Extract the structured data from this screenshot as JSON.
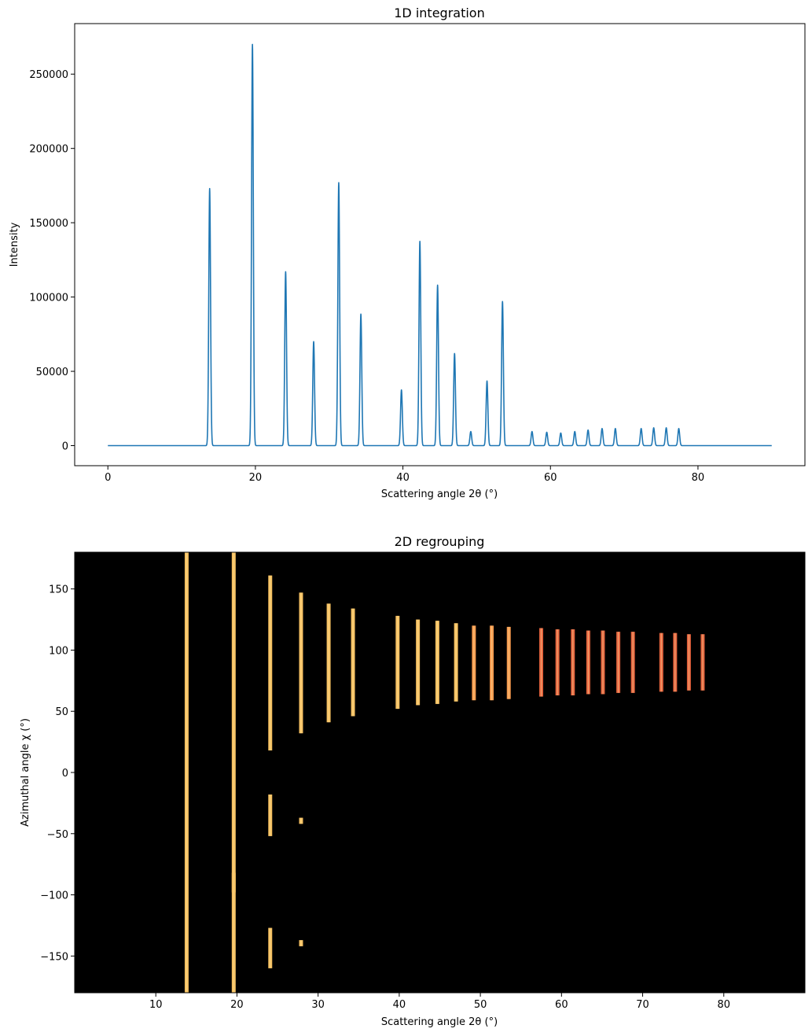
{
  "chart_data": [
    {
      "type": "line",
      "title": "1D integration",
      "xlabel": "Scattering angle 2θ (°)",
      "ylabel": "Intensity",
      "xlim": [
        -4.5,
        94.5
      ],
      "ylim": [
        -13500,
        284000
      ],
      "xticks": [
        0,
        20,
        40,
        60,
        80
      ],
      "yticks": [
        0,
        50000,
        100000,
        150000,
        200000,
        250000
      ],
      "x_range": [
        0,
        90
      ],
      "line_color": "#1f77b4",
      "peak_width_deg": 0.12,
      "peaks": [
        {
          "x": 13.8,
          "y": 173000
        },
        {
          "x": 19.6,
          "y": 270000
        },
        {
          "x": 24.1,
          "y": 117000
        },
        {
          "x": 27.9,
          "y": 70000
        },
        {
          "x": 31.3,
          "y": 177000
        },
        {
          "x": 34.3,
          "y": 88500
        },
        {
          "x": 39.8,
          "y": 37500
        },
        {
          "x": 42.3,
          "y": 137500
        },
        {
          "x": 44.7,
          "y": 108000
        },
        {
          "x": 47.0,
          "y": 62000
        },
        {
          "x": 49.2,
          "y": 9500
        },
        {
          "x": 51.4,
          "y": 43500
        },
        {
          "x": 53.5,
          "y": 97000
        },
        {
          "x": 57.5,
          "y": 9500
        },
        {
          "x": 59.5,
          "y": 9000
        },
        {
          "x": 61.4,
          "y": 8500
        },
        {
          "x": 63.3,
          "y": 9500
        },
        {
          "x": 65.1,
          "y": 10500
        },
        {
          "x": 67.0,
          "y": 11500
        },
        {
          "x": 68.8,
          "y": 11500
        },
        {
          "x": 72.3,
          "y": 11500
        },
        {
          "x": 74.0,
          "y": 12000
        },
        {
          "x": 75.7,
          "y": 12000
        },
        {
          "x": 77.4,
          "y": 11500
        }
      ]
    },
    {
      "type": "heatmap",
      "title": "2D regrouping",
      "xlabel": "Scattering angle 2θ (°)",
      "ylabel": "Azimuthal angle χ (°)",
      "xlim": [
        0,
        90
      ],
      "ylim": [
        -180,
        180
      ],
      "xticks": [
        10,
        20,
        30,
        40,
        50,
        60,
        70,
        80
      ],
      "yticks": [
        -150,
        -100,
        -50,
        0,
        50,
        100,
        150
      ],
      "background": "#000000",
      "colors": {
        "bright": "#f5c061",
        "medium": "#f59a4e",
        "dim": "#e5643f"
      },
      "rings": [
        {
          "x": 13.8,
          "color": "bright",
          "segments": [
            [
              -180,
              180
            ]
          ]
        },
        {
          "x": 19.6,
          "color": "bright",
          "segments": [
            [
              -180,
              -82
            ],
            [
              -98,
              180
            ]
          ]
        },
        {
          "x": 24.1,
          "color": "bright",
          "segments": [
            [
              18,
              161
            ],
            [
              -52,
              -18
            ],
            [
              -160,
              -127
            ]
          ]
        },
        {
          "x": 27.9,
          "color": "bright",
          "segments": [
            [
              32,
              147
            ],
            [
              -42,
              -37
            ],
            [
              -142,
              -137
            ]
          ]
        },
        {
          "x": 31.3,
          "color": "bright",
          "segments": [
            [
              41,
              138
            ]
          ]
        },
        {
          "x": 34.3,
          "color": "bright",
          "segments": [
            [
              46,
              134
            ]
          ]
        },
        {
          "x": 39.8,
          "color": "bright",
          "segments": [
            [
              52,
              128
            ]
          ]
        },
        {
          "x": 42.3,
          "color": "bright",
          "segments": [
            [
              55,
              125
            ]
          ]
        },
        {
          "x": 44.7,
          "color": "bright",
          "segments": [
            [
              56,
              124
            ]
          ]
        },
        {
          "x": 47.0,
          "color": "bright",
          "segments": [
            [
              58,
              122
            ]
          ]
        },
        {
          "x": 49.2,
          "color": "medium",
          "segments": [
            [
              59,
              120
            ]
          ]
        },
        {
          "x": 51.4,
          "color": "medium",
          "segments": [
            [
              59,
              120
            ]
          ]
        },
        {
          "x": 53.5,
          "color": "medium",
          "segments": [
            [
              60,
              119
            ]
          ]
        },
        {
          "x": 57.5,
          "color": "dim",
          "segments": [
            [
              62,
              118
            ]
          ]
        },
        {
          "x": 59.5,
          "color": "dim",
          "segments": [
            [
              63,
              117
            ]
          ]
        },
        {
          "x": 61.4,
          "color": "dim",
          "segments": [
            [
              63,
              117
            ]
          ]
        },
        {
          "x": 63.3,
          "color": "dim",
          "segments": [
            [
              64,
              116
            ]
          ]
        },
        {
          "x": 65.1,
          "color": "dim",
          "segments": [
            [
              64,
              116
            ]
          ]
        },
        {
          "x": 67.0,
          "color": "dim",
          "segments": [
            [
              65,
              115
            ]
          ]
        },
        {
          "x": 68.8,
          "color": "dim",
          "segments": [
            [
              65,
              115
            ]
          ]
        },
        {
          "x": 72.3,
          "color": "dim",
          "segments": [
            [
              66,
              114
            ]
          ]
        },
        {
          "x": 74.0,
          "color": "dim",
          "segments": [
            [
              66,
              114
            ]
          ]
        },
        {
          "x": 75.7,
          "color": "dim",
          "segments": [
            [
              67,
              113
            ]
          ]
        },
        {
          "x": 77.4,
          "color": "dim",
          "segments": [
            [
              67,
              113
            ]
          ]
        }
      ]
    }
  ]
}
